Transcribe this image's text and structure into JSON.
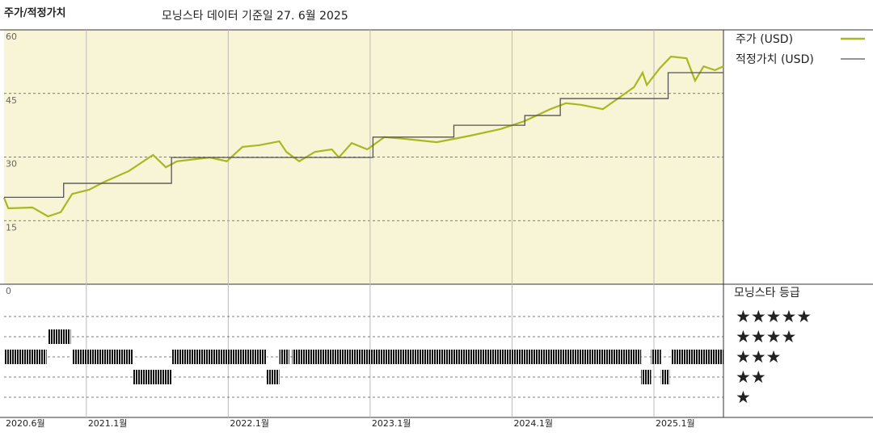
{
  "chart_data": {
    "type": "line",
    "title": "주가/적정가치",
    "subtitle": "모닝스타 데이터 기준일 27. 6월 2025",
    "xlim": [
      2020.42,
      2025.49
    ],
    "xticks": [
      {
        "value": 2020.42,
        "label": "2020.6월"
      },
      {
        "value": 2021.0,
        "label": "2021.1월"
      },
      {
        "value": 2022.0,
        "label": "2022.1월"
      },
      {
        "value": 2023.0,
        "label": "2023.1월"
      },
      {
        "value": 2024.0,
        "label": "2024.1월"
      },
      {
        "value": 2025.0,
        "label": "2025.1월"
      }
    ],
    "ylim": [
      0,
      60
    ],
    "yticks": [
      0,
      15,
      30,
      45,
      60
    ],
    "grid": true,
    "series": [
      {
        "name": "주가 (USD)",
        "color": "#a9b820",
        "x": [
          2020.42,
          2020.45,
          2020.62,
          2020.73,
          2020.82,
          2020.9,
          2021.02,
          2021.13,
          2021.3,
          2021.47,
          2021.56,
          2021.64,
          2021.87,
          2021.99,
          2022.1,
          2022.22,
          2022.36,
          2022.41,
          2022.5,
          2022.61,
          2022.73,
          2022.78,
          2022.87,
          2022.98,
          2023.1,
          2023.24,
          2023.47,
          2023.7,
          2023.92,
          2024.09,
          2024.27,
          2024.38,
          2024.49,
          2024.64,
          2024.78,
          2024.86,
          2024.92,
          2024.95,
          2025.04,
          2025.12,
          2025.23,
          2025.29,
          2025.35,
          2025.43,
          2025.49
        ],
        "values": [
          20.4,
          17.9,
          18.1,
          16,
          17,
          21.3,
          22.3,
          24.2,
          26.7,
          30.5,
          27.6,
          29,
          29.9,
          29,
          32.4,
          32.8,
          33.7,
          31.2,
          29,
          31.2,
          31.8,
          29.9,
          33.3,
          31.8,
          34.7,
          34.3,
          33.5,
          35,
          36.6,
          38.5,
          41.3,
          42.7,
          42.3,
          41.3,
          44.6,
          46.5,
          49.9,
          47,
          50.9,
          53.7,
          53.3,
          48,
          51.4,
          50.5,
          51.4
        ]
      },
      {
        "name": "적정가치 (USD)",
        "color": "#555555",
        "step": true,
        "x": [
          2020.42,
          2020.84,
          2021.6,
          2023.02,
          2023.59,
          2024.09,
          2024.34,
          2025.1,
          2025.49
        ],
        "values": [
          20.5,
          23.8,
          29.9,
          34.7,
          37.5,
          39.8,
          43.8,
          49.9,
          49.9
        ]
      }
    ],
    "ratings": {
      "title": "모닝스타 등급",
      "labels": [
        "★★★★★",
        "★★★★",
        "★★★",
        "★★",
        "★"
      ],
      "start": [
        2020.42,
        2020.73,
        2020.9,
        2021.33,
        2021.6,
        2022.27,
        2022.36,
        2022.45,
        2024.91,
        2024.98,
        2025.05,
        2025.12
      ],
      "end": [
        2020.72,
        2020.89,
        2021.33,
        2021.6,
        2022.27,
        2022.36,
        2022.43,
        2024.91,
        2024.98,
        2025.05,
        2025.11,
        2025.49
      ],
      "stars": [
        3,
        4,
        3,
        2,
        3,
        2,
        3,
        3,
        2,
        3,
        2,
        3
      ]
    }
  }
}
